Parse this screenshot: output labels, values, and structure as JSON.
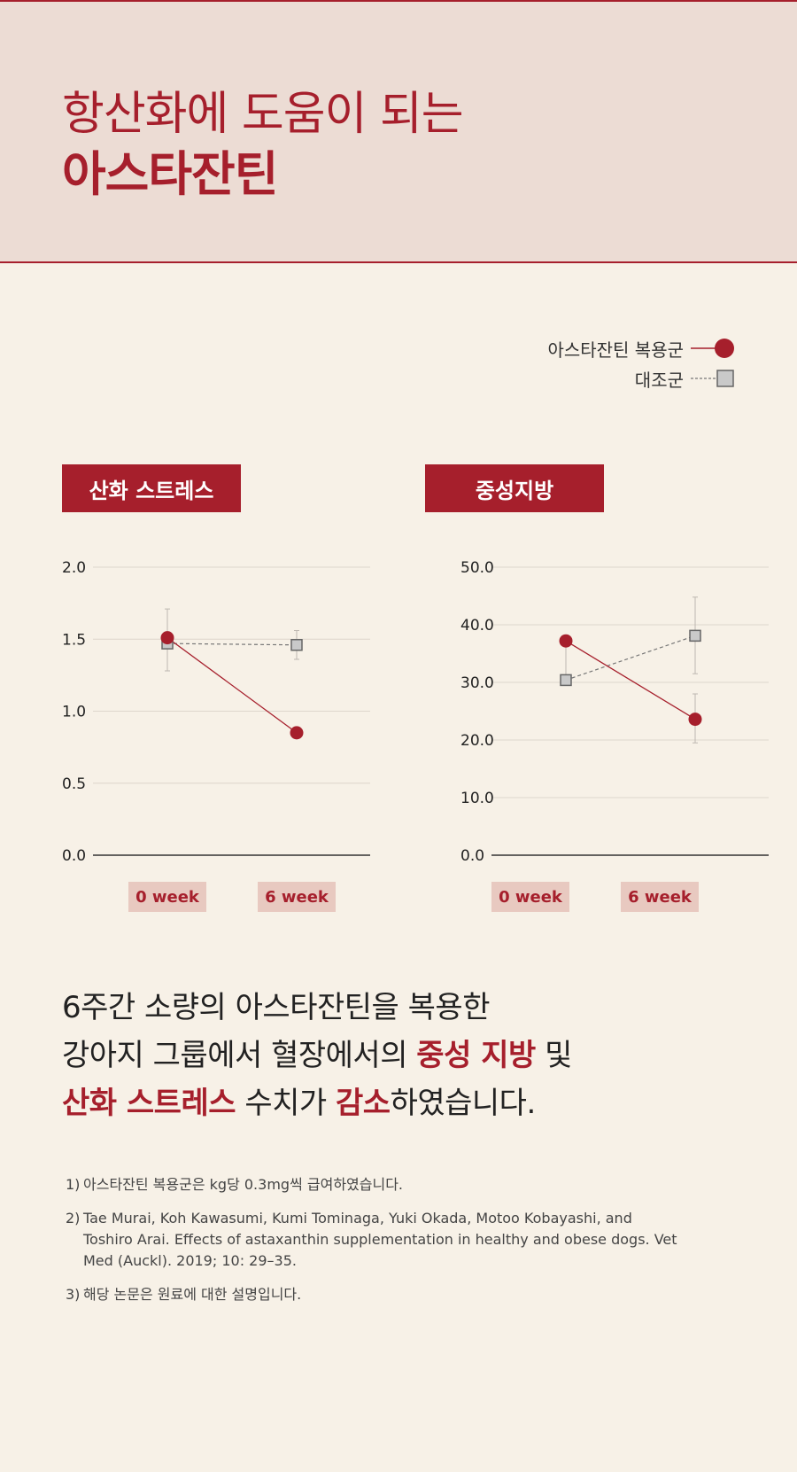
{
  "hero": {
    "line1": "항산화에 도움이 되는",
    "line2": "아스타잔틴"
  },
  "legend": {
    "treatment": "아스타잔틴 복용군",
    "control": "대조군"
  },
  "colors": {
    "accent": "#a61f2c",
    "control": "#c9c9c9",
    "hero_bg": "#ecdcd4",
    "page_bg": "#f7f1e7",
    "badge_bg": "#e8c9c0"
  },
  "chart_data": [
    {
      "type": "line",
      "title": "산화 스트레스",
      "categories": [
        "0 week",
        "6 week"
      ],
      "ylim": [
        0,
        2
      ],
      "yticks": [
        "0.0",
        "0.5",
        "1.0",
        "1.5",
        "2.0"
      ],
      "ytick_values": [
        0,
        0.5,
        1.0,
        1.5,
        2.0
      ],
      "series": [
        {
          "name": "아스타잔틴 복용군",
          "values": [
            1.51,
            0.85
          ],
          "err": [
            null,
            null
          ],
          "marker": "circle"
        },
        {
          "name": "대조군",
          "values": [
            1.47,
            1.46
          ],
          "err": [
            [
              1.28,
              1.71
            ],
            [
              1.36,
              1.56
            ]
          ],
          "marker": "square"
        }
      ]
    },
    {
      "type": "line",
      "title": "중성지방",
      "categories": [
        "0 week",
        "6 week"
      ],
      "ylim": [
        0,
        50
      ],
      "yticks": [
        "0.0",
        "10.0",
        "20.0",
        "30.0",
        "40.0",
        "50.0"
      ],
      "ytick_values": [
        0,
        10,
        20,
        30,
        40,
        50
      ],
      "series": [
        {
          "name": "아스타잔틴 복용군",
          "values": [
            37.2,
            23.6
          ],
          "err": [
            [
              30.0,
              37.2
            ],
            [
              19.5,
              28.0
            ]
          ],
          "marker": "circle"
        },
        {
          "name": "대조군",
          "values": [
            30.4,
            38.1
          ],
          "err": [
            null,
            [
              31.5,
              44.8
            ]
          ],
          "marker": "square"
        }
      ]
    }
  ],
  "summary": {
    "l1": "6주간 소량의 아스타잔틴을 복용한",
    "l2a": "강아지 그룹에서 혈장에서의 ",
    "l2b": "중성 지방",
    "l2c": " 및",
    "l3a": "산화 스트레스",
    "l3b": " 수치가 ",
    "l3c": "감소",
    "l3d": "하였습니다."
  },
  "notes": [
    {
      "num": "1)",
      "text": "아스타잔틴 복용군은 kg당 0.3mg씩 급여하였습니다."
    },
    {
      "num": "2)",
      "text": "Tae Murai, Koh Kawasumi, Kumi Tominaga, Yuki Okada, Motoo Kobayashi, and Toshiro Arai. Effects of astaxanthin supplementation in healthy and obese dogs. Vet Med (Auckl). 2019; 10: 29–35."
    },
    {
      "num": "3)",
      "text": "해당 논문은 원료에 대한 설명입니다."
    }
  ]
}
